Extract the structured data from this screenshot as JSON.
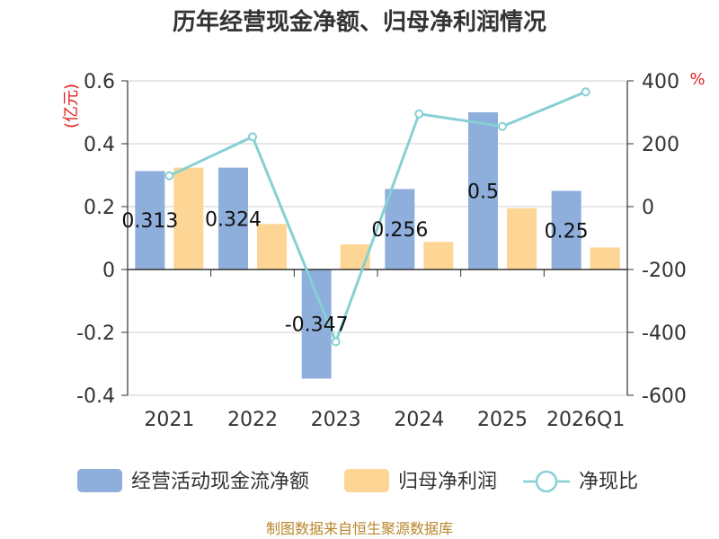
{
  "chart_data": {
    "type": "bar+line",
    "title": "历年经营现金净额、归母净利润情况",
    "categories": [
      "2021",
      "2022",
      "2023",
      "2024",
      "2025",
      "2026Q1"
    ],
    "left_axis": {
      "unit": "(亿元)",
      "ylim": [
        -0.4,
        0.6
      ],
      "ticks": [
        "0.6",
        "0.4",
        "0.2",
        "0",
        "-0.2",
        "-0.4"
      ]
    },
    "right_axis": {
      "unit": "%",
      "ylim": [
        -600,
        400
      ],
      "ticks": [
        "400",
        "200",
        "0",
        "-200",
        "-400",
        "-600"
      ]
    },
    "series": [
      {
        "name": "经营活动现金流净额",
        "type": "bar",
        "axis": "left",
        "color": "#8eaedb",
        "values": [
          0.313,
          0.324,
          -0.347,
          0.256,
          0.5,
          0.25
        ],
        "labels": [
          "0.313",
          "0.324",
          "-0.347",
          "0.256",
          "0.5",
          "0.25"
        ]
      },
      {
        "name": "归母净利润",
        "type": "bar",
        "axis": "left",
        "color": "#fdd594",
        "values": [
          0.324,
          0.145,
          0.08,
          0.088,
          0.195,
          0.07
        ]
      },
      {
        "name": "净现比",
        "type": "line",
        "axis": "right",
        "color": "#86d0d4",
        "values": [
          98,
          222,
          -430,
          295,
          255,
          365
        ]
      }
    ],
    "legend": [
      "经营活动现金流净额",
      "归母净利润",
      "净现比"
    ],
    "source": "制图数据来自恒生聚源数据库"
  }
}
